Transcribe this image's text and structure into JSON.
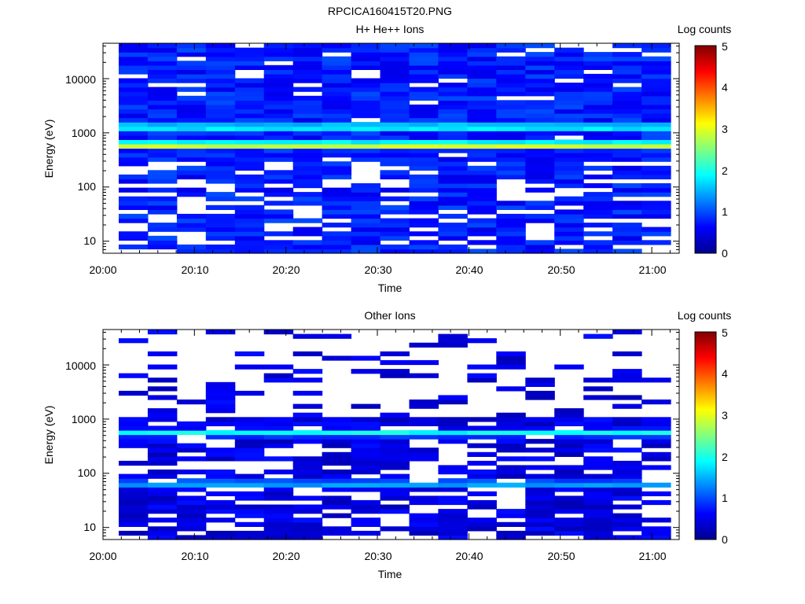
{
  "figure_title": "RPCICA160415T20.PNG",
  "colors": {
    "colormap": [
      "#00008f",
      "#0000ff",
      "#00ffff",
      "#ffff00",
      "#ff0000",
      "#800000"
    ],
    "axis": "#000000",
    "background": "#ffffff"
  },
  "chart_data": [
    {
      "type": "heatmap",
      "title": "H+ He++ Ions",
      "xlabel": "Time",
      "ylabel": "Energy (eV)",
      "x_ticks": [
        "20:00",
        "20:10",
        "20:20",
        "20:30",
        "20:40",
        "20:50",
        "21:00"
      ],
      "y_ticks": [
        "10",
        "100",
        "1000",
        "10000"
      ],
      "y_scale": "log",
      "time_range": [
        "20:00",
        "21:03"
      ],
      "energy_range_ev": [
        6,
        45000
      ],
      "time_bins": 19,
      "colorbar": {
        "label": "Log counts",
        "ticks": [
          "0",
          "1",
          "2",
          "3",
          "4",
          "5"
        ],
        "range": [
          0,
          5
        ]
      },
      "profile": {
        "background_log_counts": 0.5,
        "bands": [
          {
            "energy_ev": 600,
            "log_counts": 3.0,
            "description": "peak"
          },
          {
            "energy_ev": 1300,
            "log_counts": 2.0,
            "description": "secondary band"
          }
        ],
        "sparse_below_ev": 300,
        "sparse_above_ev": 3000
      }
    },
    {
      "type": "heatmap",
      "title": "Other Ions",
      "xlabel": "Time",
      "ylabel": "Energy (eV)",
      "x_ticks": [
        "20:00",
        "20:10",
        "20:20",
        "20:30",
        "20:40",
        "20:50",
        "21:00"
      ],
      "y_ticks": [
        "10",
        "100",
        "1000",
        "10000"
      ],
      "y_scale": "log",
      "time_range": [
        "20:00",
        "21:03"
      ],
      "energy_range_ev": [
        6,
        45000
      ],
      "time_bins": 19,
      "colorbar": {
        "label": "Log counts",
        "ticks": [
          "0",
          "1",
          "2",
          "3",
          "4",
          "5"
        ],
        "range": [
          0,
          5
        ]
      },
      "profile": {
        "background_log_counts": 0.2,
        "bands": [
          {
            "energy_ev": 560,
            "log_counts": 1.8,
            "description": "main band"
          },
          {
            "energy_ev": 65,
            "log_counts": 1.4,
            "description": "low energy band"
          }
        ],
        "sparse_below_ev": 400,
        "sparse_above_ev": 1000
      }
    }
  ]
}
